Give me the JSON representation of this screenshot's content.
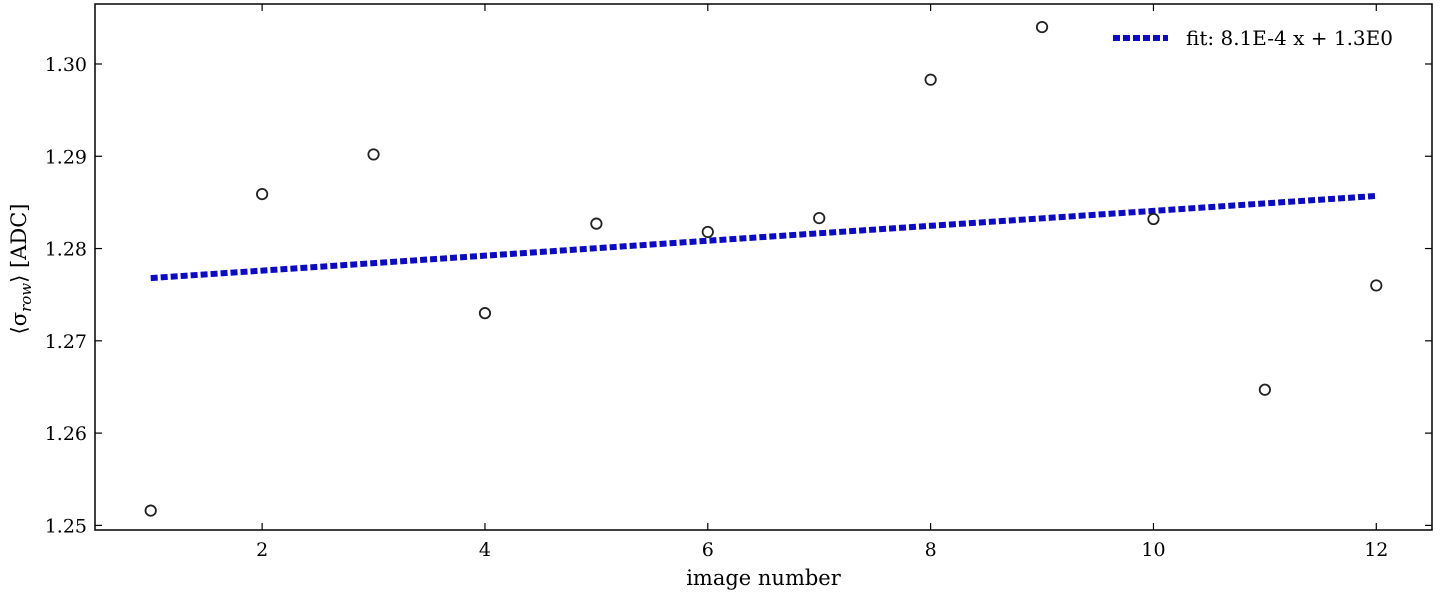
{
  "chart_data": {
    "type": "scatter",
    "xlabel": "image number",
    "ylabel_main": "⟨σ",
    "ylabel_sub": "row",
    "ylabel_tail": "⟩ [ADC]",
    "xlim": [
      0.5,
      12.5
    ],
    "ylim": [
      1.2495,
      1.3065
    ],
    "x_ticks": [
      2,
      4,
      6,
      8,
      10,
      12
    ],
    "x_tick_labels": [
      "2",
      "4",
      "6",
      "8",
      "10",
      "12"
    ],
    "y_ticks": [
      1.25,
      1.26,
      1.27,
      1.28,
      1.29,
      1.3
    ],
    "y_tick_labels": [
      "1.25",
      "1.26",
      "1.27",
      "1.28",
      "1.29",
      "1.30"
    ],
    "grid": false,
    "legend_position": "top-right",
    "series": [
      {
        "kind": "points",
        "marker": "open-circle",
        "color": "#222222",
        "x": [
          1,
          2,
          3,
          4,
          5,
          6,
          7,
          8,
          9,
          10,
          11,
          12
        ],
        "y": [
          1.2516,
          1.2859,
          1.2902,
          1.273,
          1.2827,
          1.2818,
          1.2833,
          1.2983,
          1.304,
          1.2832,
          1.2647,
          1.276
        ]
      },
      {
        "kind": "fit-line",
        "name": "fit: 8.1E-4 x + 1.3E0",
        "style": "dotted",
        "color": "#0a0ac8",
        "x": [
          1,
          12
        ],
        "y": [
          1.2768,
          1.2857
        ]
      }
    ]
  }
}
